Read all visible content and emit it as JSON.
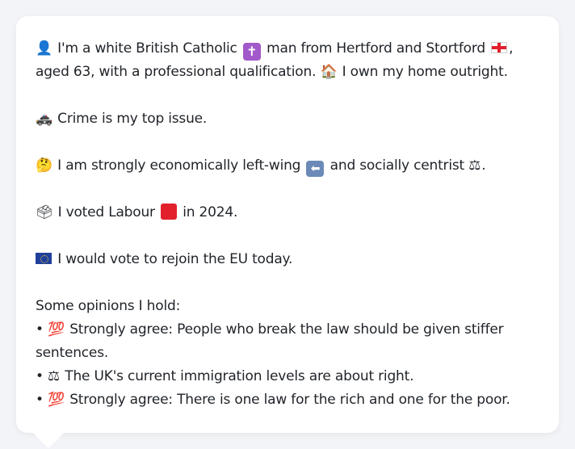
{
  "profile": {
    "line1": {
      "icon_person": "👤",
      "part1": " I'm a white British Catholic ",
      "icon_cross": "✝",
      "part2": " man from Hertford and Stortford ",
      "part3": ", aged 63, with a professional qualification. ",
      "icon_house": "🏠",
      "part4": " I own my home outright."
    },
    "line2": {
      "icon_police": "🚓",
      "text": " Crime is my top issue."
    },
    "line3": {
      "icon_thinking": "🤔",
      "part1": " I am strongly economically left-wing ",
      "icon_arrow": "⬅",
      "part2": " and socially centrist ",
      "icon_scales": "⚖",
      "part3": "."
    },
    "line4": {
      "icon_ballot": "🗳",
      "part1": " I voted Labour ",
      "part2": " in 2024."
    },
    "line5": {
      "text": " I would vote to rejoin the EU today."
    },
    "opinions_heading": "Some opinions I hold:",
    "opinions": [
      {
        "bullet": "•",
        "icon": "💯",
        "text": " Strongly agree: People who break the law should be given stiffer sentences."
      },
      {
        "bullet": "•",
        "icon": "⚖",
        "text": " The UK's current immigration levels are about right."
      },
      {
        "bullet": "•",
        "icon": "💯",
        "text": " Strongly agree: There is one law for the rich and one for the poor."
      }
    ]
  },
  "colors": {
    "background": "#f3f4f7",
    "card": "#ffffff",
    "text": "#1f2328",
    "labour_red": "#e2202c"
  }
}
